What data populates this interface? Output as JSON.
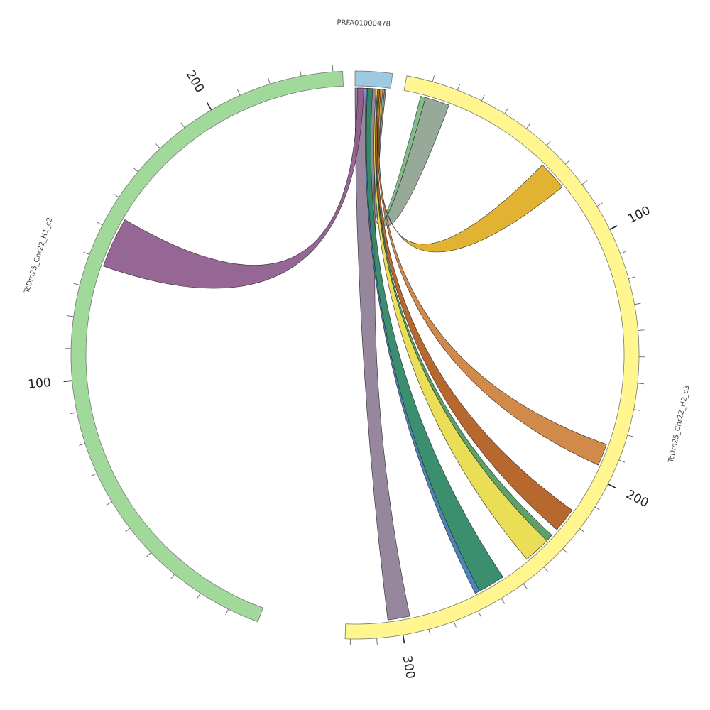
{
  "chart_data": {
    "type": "chord",
    "units": "kb",
    "segments": [
      {
        "name": "PRFA01000478",
        "start": 0,
        "end": 8,
        "color": "#9ecae1",
        "label_size": 10
      },
      {
        "name": "TcDm25_Chr22_H2_c3",
        "start": 0,
        "end": 322,
        "color": "#fff68f",
        "label_size": 10,
        "tick_labels": [
          {
            "value": 100,
            "text": "100"
          },
          {
            "value": 200,
            "text": "200"
          },
          {
            "value": 300,
            "text": "300"
          }
        ]
      },
      {
        "name": "TcDm25_Chr22_H1_c2",
        "start": 0,
        "end": 243,
        "color": "#a1d99b",
        "label_size": 10,
        "tick_labels": [
          {
            "value": 100,
            "text": "100"
          },
          {
            "value": 200,
            "text": "200"
          }
        ]
      }
    ],
    "links": [
      {
        "from": {
          "seg": "PRFA01000478",
          "start": 0.0,
          "end": 7.0
        },
        "to": {
          "seg": "TcDm25_Chr22_H2_c3",
          "start": 296.0,
          "end": 305.0
        },
        "color": "#8e7e96"
      },
      {
        "from": {
          "seg": "PRFA01000478",
          "start": 0.6,
          "end": 2.0
        },
        "to": {
          "seg": "TcDm25_Chr22_H1_c2",
          "start": 138.0,
          "end": 155.0
        },
        "color": "#8e5b8c"
      },
      {
        "from": {
          "seg": "PRFA01000478",
          "start": 6.2,
          "end": 6.7
        },
        "to": {
          "seg": "TcDm25_Chr22_H2_c3",
          "start": 9.0,
          "end": 19.0
        },
        "color": "#8fa391"
      },
      {
        "from": {
          "seg": "PRFA01000478",
          "start": 5.9,
          "end": 6.2
        },
        "to": {
          "seg": "TcDm25_Chr22_H2_c3",
          "start": 7.0,
          "end": 9.0
        },
        "color": "#79b77f"
      },
      {
        "from": {
          "seg": "PRFA01000478",
          "start": 5.8,
          "end": 6.3
        },
        "to": {
          "seg": "TcDm25_Chr22_H2_c3",
          "start": 64.0,
          "end": 76.0
        },
        "color": "#e0ac22"
      },
      {
        "from": {
          "seg": "PRFA01000478",
          "start": 5.6,
          "end": 5.9
        },
        "to": {
          "seg": "TcDm25_Chr22_H2_c3",
          "start": 186.0,
          "end": 195.0
        },
        "color": "#cd813c"
      },
      {
        "from": {
          "seg": "PRFA01000478",
          "start": 5.3,
          "end": 5.6
        },
        "to": {
          "seg": "TcDm25_Chr22_H2_c3",
          "start": 216.0,
          "end": 226.0
        },
        "color": "#b05c1e"
      },
      {
        "from": {
          "seg": "PRFA01000478",
          "start": 5.1,
          "end": 5.3
        },
        "to": {
          "seg": "TcDm25_Chr22_H2_c3",
          "start": 229.0,
          "end": 232.0
        },
        "color": "#4f9a5d"
      },
      {
        "from": {
          "seg": "PRFA01000478",
          "start": 4.8,
          "end": 5.1
        },
        "to": {
          "seg": "TcDm25_Chr22_H2_c3",
          "start": 232.0,
          "end": 243.0
        },
        "color": "#e8dc4a"
      },
      {
        "from": {
          "seg": "PRFA01000478",
          "start": 2.8,
          "end": 4.0
        },
        "to": {
          "seg": "TcDm25_Chr22_H2_c3",
          "start": 255.0,
          "end": 266.0
        },
        "color": "#2c8664"
      },
      {
        "from": {
          "seg": "PRFA01000478",
          "start": 2.5,
          "end": 2.8
        },
        "to": {
          "seg": "TcDm25_Chr22_H2_c3",
          "start": 266.0,
          "end": 268.0
        },
        "color": "#3f7ab0"
      }
    ]
  }
}
